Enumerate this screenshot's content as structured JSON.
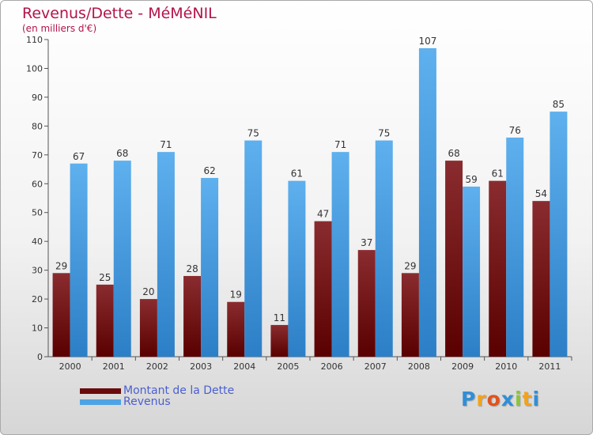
{
  "title": "Revenus/Dette - MéMéNIL",
  "subtitle": "(en milliers d'€)",
  "chart_data": {
    "type": "bar",
    "categories": [
      "2000",
      "2001",
      "2002",
      "2003",
      "2004",
      "2005",
      "2006",
      "2007",
      "2008",
      "2009",
      "2010",
      "2011"
    ],
    "series": [
      {
        "name": "Montant de la Dette",
        "color": "#7a1a1f",
        "values": [
          29,
          25,
          20,
          28,
          19,
          11,
          47,
          37,
          29,
          68,
          61,
          54
        ]
      },
      {
        "name": "Revenus",
        "color": "#4ea3e4",
        "values": [
          67,
          68,
          71,
          62,
          75,
          61,
          71,
          75,
          107,
          59,
          76,
          85
        ]
      }
    ],
    "ylim": [
      0,
      110
    ],
    "yticks": [
      0,
      10,
      20,
      30,
      40,
      50,
      60,
      70,
      80,
      90,
      100,
      110
    ],
    "grid": false,
    "legend": "bottom-left"
  },
  "legend": {
    "items": [
      {
        "label": "Montant de la Dette",
        "color": "#6a0a0a"
      },
      {
        "label": "Revenus",
        "color": "#4ea3e4"
      }
    ]
  },
  "logo": {
    "letters": [
      {
        "ch": "P",
        "color": "#2f8fd8"
      },
      {
        "ch": "r",
        "color": "#f3a21b"
      },
      {
        "ch": "o",
        "color": "#e0531e"
      },
      {
        "ch": "x",
        "color": "#2f8fd8"
      },
      {
        "ch": "i",
        "color": "#8cc43d"
      },
      {
        "ch": "t",
        "color": "#f3a21b"
      },
      {
        "ch": "i",
        "color": "#2f8fd8"
      }
    ]
  }
}
